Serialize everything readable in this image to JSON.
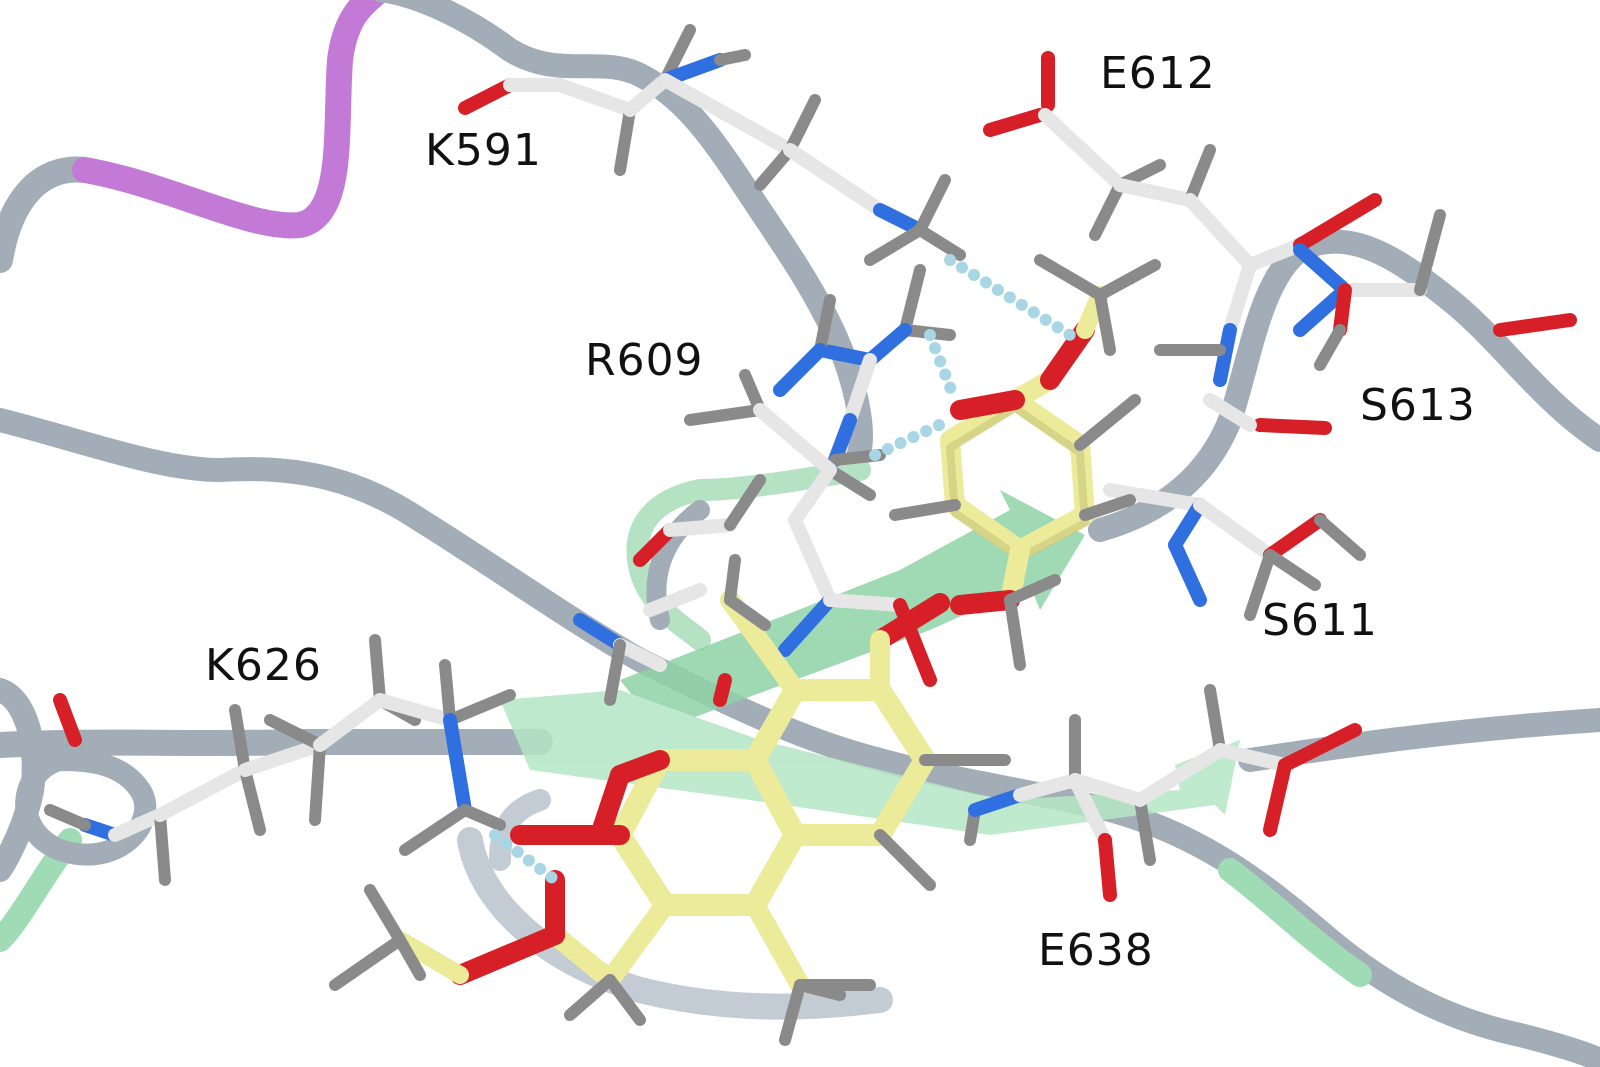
{
  "labels": {
    "k591": "K591",
    "e612": "E612",
    "r609": "R609",
    "s613": "S613",
    "s611": "S611",
    "k626": "K626",
    "e638": "E638"
  },
  "colors": {
    "background": "#ffffff",
    "backbone": "#a3adb7",
    "backbone_light": "#c3ccd4",
    "loop_magenta": "#c27ad6",
    "sheet_green": "#9fdcb5",
    "carbon_grey": "#e6e6e6",
    "carbon_dark": "#6e6e6e",
    "nitrogen": "#2f6fe0",
    "oxygen": "#d61f26",
    "ligand": "#eceb9a",
    "ligand_shade": "#c8c57a",
    "hbond": "#a9d6e4"
  }
}
